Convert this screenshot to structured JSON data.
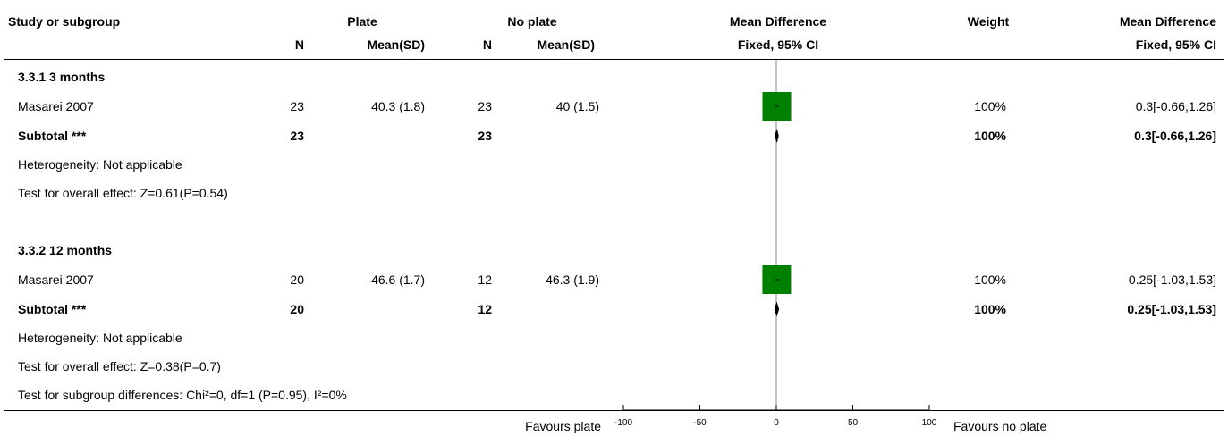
{
  "header": {
    "study_col": "Study or subgroup",
    "group1": "Plate",
    "group2": "No plate",
    "md_col": "Mean Difference",
    "weight_col": "Weight",
    "md_col2": "Mean Difference",
    "n_label": "N",
    "meansd_label": "Mean(SD)",
    "method_label": "Fixed, 95% CI"
  },
  "subgroups": [
    {
      "title": "3.3.1 3 months",
      "study": {
        "name": "Masarei 2007",
        "n1": "23",
        "m1": "40.3 (1.8)",
        "n2": "23",
        "m2": "40 (1.5)",
        "weight": "100%",
        "ci": "0.3[-0.66,1.26]"
      },
      "subtotal": {
        "label": "Subtotal ***",
        "n1": "23",
        "n2": "23",
        "weight": "100%",
        "ci": "0.3[-0.66,1.26]"
      },
      "heterogeneity": "Heterogeneity: Not applicable",
      "overall": "Test for overall effect: Z=0.61(P=0.54)"
    },
    {
      "title": "3.3.2 12 months",
      "study": {
        "name": "Masarei 2007",
        "n1": "20",
        "m1": "46.6 (1.7)",
        "n2": "12",
        "m2": "46.3 (1.9)",
        "weight": "100%",
        "ci": "0.25[-1.03,1.53]"
      },
      "subtotal": {
        "label": "Subtotal ***",
        "n1": "20",
        "n2": "12",
        "weight": "100%",
        "ci": "0.25[-1.03,1.53]"
      },
      "heterogeneity": "Heterogeneity: Not applicable",
      "overall": "Test for overall effect: Z=0.38(P=0.7)"
    }
  ],
  "subgroup_diff": "Test for subgroup differences: Chi²=0, df=1 (P=0.95), I²=0%",
  "footer": {
    "favours_left": "Favours plate",
    "favours_right": "Favours no plate"
  },
  "colors": {
    "study_box": "#008000",
    "line": "#000000",
    "zero_line": "#888888"
  },
  "chart_data": {
    "type": "forest",
    "xlim": [
      -100,
      100
    ],
    "ticks": [
      -100,
      -50,
      0,
      50,
      100
    ],
    "studies": [
      {
        "subgroup": "3.3.1 3 months",
        "name": "Masarei 2007",
        "md": 0.3,
        "ci": [
          -0.66,
          1.26
        ],
        "weight": 100
      },
      {
        "subgroup": "3.3.2 12 months",
        "name": "Masarei 2007",
        "md": 0.25,
        "ci": [
          -1.03,
          1.53
        ],
        "weight": 100
      }
    ],
    "subtotals": [
      {
        "subgroup": "3.3.1 3 months",
        "md": 0.3,
        "ci": [
          -0.66,
          1.26
        ]
      },
      {
        "subgroup": "3.3.2 12 months",
        "md": 0.25,
        "ci": [
          -1.03,
          1.53
        ]
      }
    ]
  }
}
